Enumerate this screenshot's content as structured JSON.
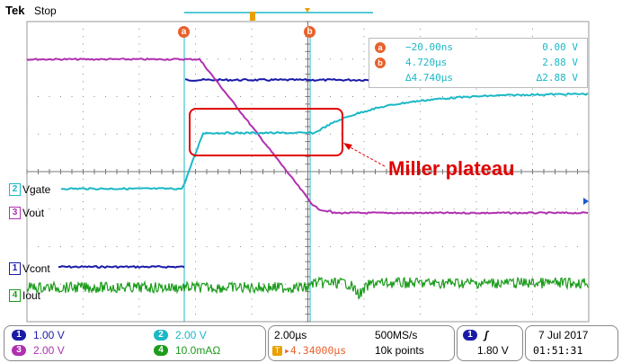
{
  "header": {
    "brand": "Tek",
    "run_state": "Stop"
  },
  "channels": [
    {
      "id": "2",
      "name": "Vgate",
      "color": "#1bb8c6"
    },
    {
      "id": "3",
      "name": "Vout",
      "color": "#b030b0"
    },
    {
      "id": "1",
      "name": "Vcont",
      "color": "#1a1aa8"
    },
    {
      "id": "4",
      "name": "Iout",
      "color": "#1c9c1c"
    }
  ],
  "cursors": {
    "a_label": "a",
    "b_label": "b",
    "readout": {
      "a": {
        "tag": "a",
        "time": "−20.00ns",
        "volt": "0.00 V"
      },
      "b": {
        "tag": "b",
        "time": "4.720µs",
        "volt": "2.88 V"
      },
      "delta": {
        "time": "∆4.740µs",
        "volt": "∆2.88 V"
      }
    }
  },
  "annotation": {
    "text": "Miller plateau",
    "color": "#e00000"
  },
  "scale": {
    "ch1": {
      "num": "1",
      "value": "1.00 V"
    },
    "ch2": {
      "num": "2",
      "value": "2.00 V"
    },
    "ch3": {
      "num": "3",
      "value": "2.00 V"
    },
    "ch4": {
      "num": "4",
      "value": "10.0mAΩ"
    }
  },
  "timebase": {
    "time_div": "2.00µs",
    "sample_rate": "500MS/s",
    "trigger_delay": "▸4.34000µs",
    "record_length": "10k points"
  },
  "trigger": {
    "channel": "1",
    "slope": "ʃ",
    "level": "1.80 V"
  },
  "datetime": {
    "date": "7 Jul 2017",
    "time": "01:51:31"
  }
}
